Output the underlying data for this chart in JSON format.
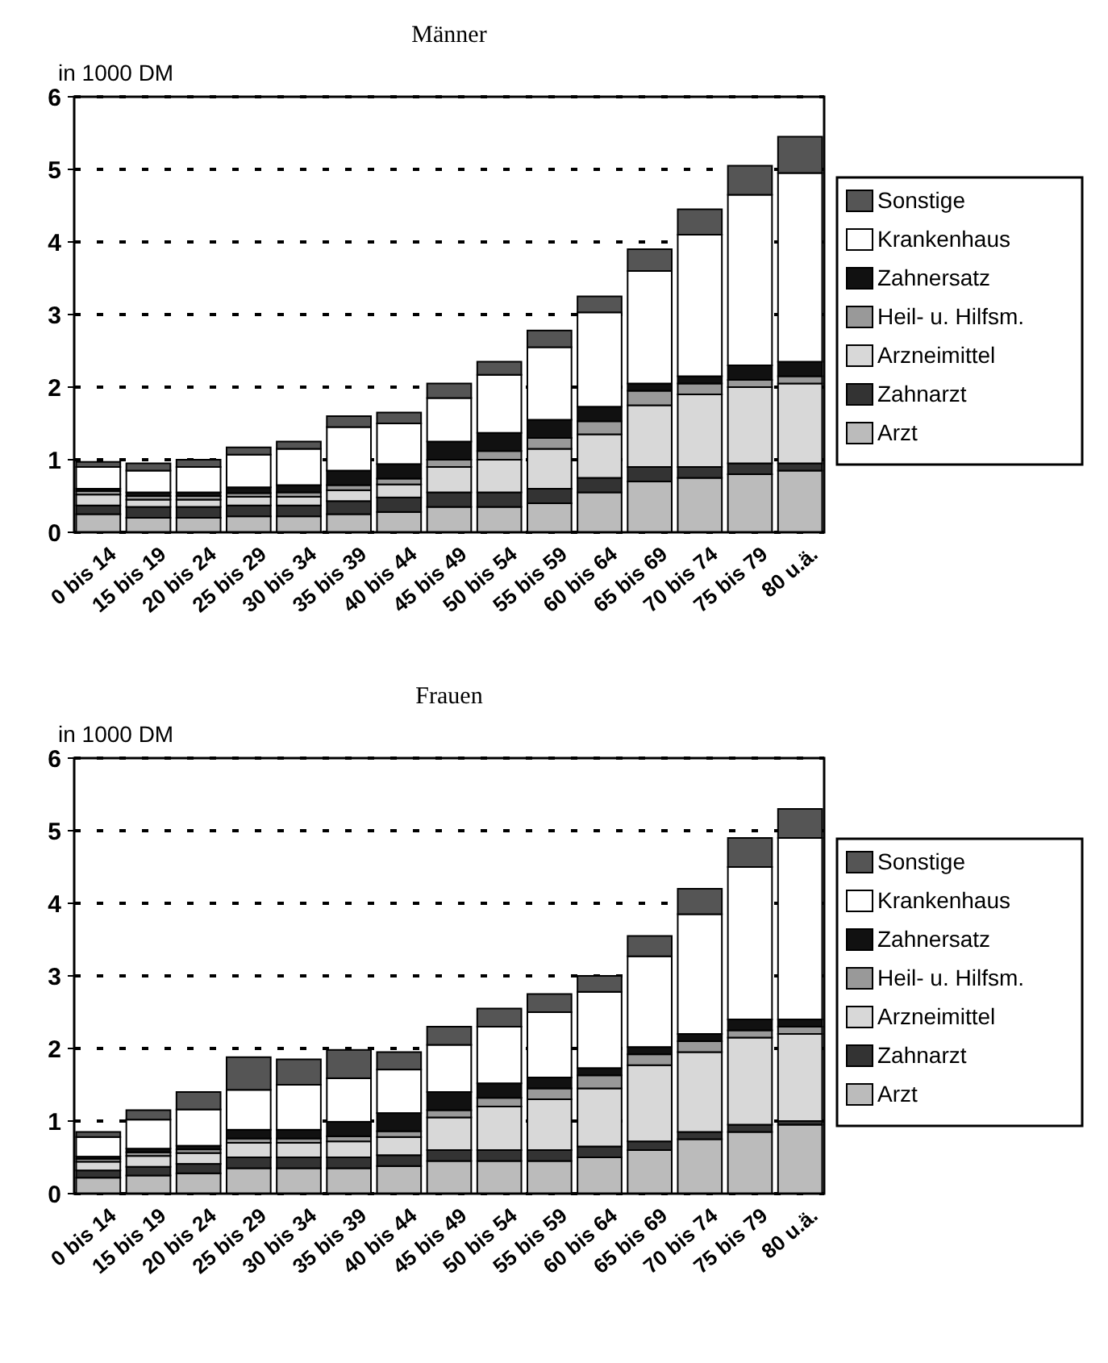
{
  "chart_data": [
    {
      "type": "bar",
      "title": "Männer",
      "ylabel": "in 1000 DM",
      "stacked": true,
      "categories": [
        "0 bis 14",
        "15 bis 19",
        "20 bis 24",
        "25 bis 29",
        "30 bis 34",
        "35 bis 39",
        "40 bis 44",
        "45 bis 49",
        "50 bis 54",
        "55 bis 59",
        "60 bis 64",
        "65 bis 69",
        "70 bis 74",
        "75 bis 79",
        "80 u.ä."
      ],
      "ylim": [
        0,
        6
      ],
      "yticks": [
        0,
        1,
        2,
        3,
        4,
        5,
        6
      ],
      "grid": "y",
      "legend": "right",
      "series": [
        {
          "name": "Arzt",
          "color": "#bbbbbb",
          "values": [
            0.25,
            0.2,
            0.2,
            0.22,
            0.22,
            0.25,
            0.28,
            0.35,
            0.35,
            0.4,
            0.55,
            0.7,
            0.75,
            0.8,
            0.85
          ]
        },
        {
          "name": "Zahnarzt",
          "color": "#333333",
          "values": [
            0.12,
            0.15,
            0.15,
            0.15,
            0.15,
            0.18,
            0.2,
            0.2,
            0.2,
            0.2,
            0.2,
            0.2,
            0.15,
            0.15,
            0.1
          ]
        },
        {
          "name": "Arzneimittel",
          "color": "#d8d8d8",
          "values": [
            0.15,
            0.1,
            0.1,
            0.12,
            0.12,
            0.15,
            0.18,
            0.35,
            0.45,
            0.55,
            0.6,
            0.85,
            1.0,
            1.05,
            1.1
          ]
        },
        {
          "name": "Heil- u. Hilfsm.",
          "color": "#999999",
          "values": [
            0.05,
            0.05,
            0.05,
            0.05,
            0.06,
            0.07,
            0.08,
            0.1,
            0.12,
            0.15,
            0.18,
            0.2,
            0.15,
            0.1,
            0.1
          ]
        },
        {
          "name": "Zahnersatz",
          "color": "#111111",
          "values": [
            0.03,
            0.05,
            0.05,
            0.08,
            0.1,
            0.2,
            0.2,
            0.25,
            0.25,
            0.25,
            0.2,
            0.1,
            0.1,
            0.2,
            0.2
          ]
        },
        {
          "name": "Krankenhaus",
          "color": "#ffffff",
          "values": [
            0.3,
            0.3,
            0.35,
            0.45,
            0.5,
            0.6,
            0.56,
            0.6,
            0.8,
            1.0,
            1.3,
            1.55,
            1.95,
            2.35,
            2.6
          ]
        },
        {
          "name": "Sonstige",
          "color": "#555555",
          "values": [
            0.07,
            0.1,
            0.1,
            0.1,
            0.1,
            0.15,
            0.15,
            0.2,
            0.18,
            0.23,
            0.22,
            0.3,
            0.35,
            0.4,
            0.5
          ]
        }
      ]
    },
    {
      "type": "bar",
      "title": "Frauen",
      "ylabel": "in 1000 DM",
      "stacked": true,
      "categories": [
        "0 bis 14",
        "15 bis 19",
        "20 bis 24",
        "25 bis 29",
        "30 bis 34",
        "35 bis 39",
        "40 bis 44",
        "45 bis 49",
        "50 bis 54",
        "55 bis 59",
        "60 bis 64",
        "65 bis 69",
        "70 bis 74",
        "75 bis 79",
        "80 u.ä."
      ],
      "ylim": [
        0,
        6
      ],
      "yticks": [
        0,
        1,
        2,
        3,
        4,
        5,
        6
      ],
      "grid": "y",
      "legend": "right",
      "series": [
        {
          "name": "Arzt",
          "color": "#bbbbbb",
          "values": [
            0.22,
            0.25,
            0.28,
            0.35,
            0.35,
            0.35,
            0.38,
            0.45,
            0.45,
            0.45,
            0.5,
            0.6,
            0.75,
            0.85,
            0.95
          ]
        },
        {
          "name": "Zahnarzt",
          "color": "#333333",
          "values": [
            0.1,
            0.12,
            0.13,
            0.15,
            0.15,
            0.15,
            0.15,
            0.15,
            0.15,
            0.15,
            0.15,
            0.12,
            0.1,
            0.1,
            0.05
          ]
        },
        {
          "name": "Arzneimittel",
          "color": "#d8d8d8",
          "values": [
            0.12,
            0.15,
            0.15,
            0.2,
            0.2,
            0.22,
            0.25,
            0.45,
            0.6,
            0.7,
            0.8,
            1.05,
            1.1,
            1.2,
            1.2
          ]
        },
        {
          "name": "Heil- u. Hilfsm.",
          "color": "#999999",
          "values": [
            0.04,
            0.05,
            0.05,
            0.06,
            0.06,
            0.07,
            0.08,
            0.1,
            0.12,
            0.15,
            0.18,
            0.15,
            0.15,
            0.1,
            0.1
          ]
        },
        {
          "name": "Zahnersatz",
          "color": "#111111",
          "values": [
            0.03,
            0.05,
            0.05,
            0.12,
            0.12,
            0.2,
            0.25,
            0.25,
            0.2,
            0.15,
            0.1,
            0.1,
            0.1,
            0.15,
            0.1
          ]
        },
        {
          "name": "Krankenhaus",
          "color": "#ffffff",
          "values": [
            0.27,
            0.4,
            0.5,
            0.55,
            0.62,
            0.6,
            0.6,
            0.65,
            0.78,
            0.9,
            1.05,
            1.25,
            1.65,
            2.1,
            2.5
          ]
        },
        {
          "name": "Sonstige",
          "color": "#555555",
          "values": [
            0.07,
            0.13,
            0.24,
            0.45,
            0.35,
            0.39,
            0.24,
            0.25,
            0.25,
            0.25,
            0.22,
            0.28,
            0.35,
            0.4,
            0.4
          ]
        }
      ]
    }
  ]
}
